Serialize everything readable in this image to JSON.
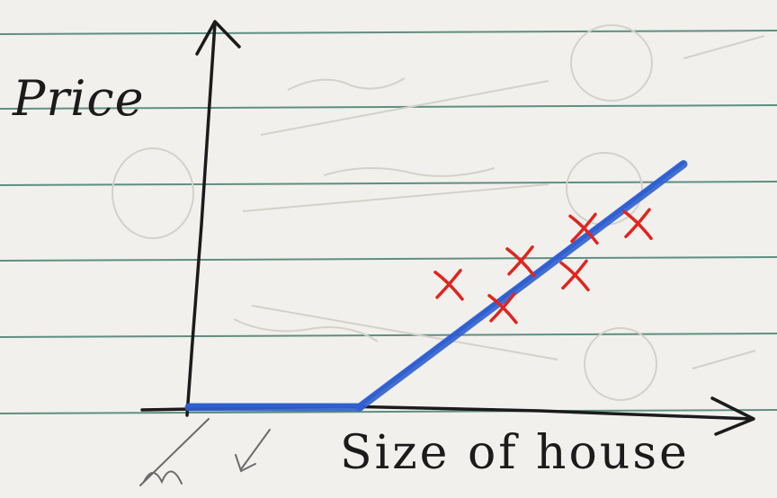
{
  "axes": {
    "y_label": "Price",
    "x_label": "Size of house"
  },
  "data_points": [
    {
      "x": 2.9,
      "y": 2.6
    },
    {
      "x": 3.5,
      "y": 2.1
    },
    {
      "x": 3.7,
      "y": 3.1
    },
    {
      "x": 4.3,
      "y": 2.8
    },
    {
      "x": 4.4,
      "y": 3.8
    },
    {
      "x": 5.0,
      "y": 3.9
    }
  ],
  "fit_line": {
    "segments": [
      {
        "x": [
          0.0,
          1.9
        ],
        "y": [
          0.0,
          0.0
        ]
      },
      {
        "x": [
          1.9,
          5.5
        ],
        "y": [
          0.0,
          5.2
        ]
      }
    ]
  },
  "colors": {
    "paper": "#f1f0ec",
    "rule_line": "#5f8f80",
    "ink": "#1b1b1b",
    "marker": "#e0251f",
    "fit_line": "#2f5fd0",
    "ghost_ink": "#cfcdc6"
  }
}
